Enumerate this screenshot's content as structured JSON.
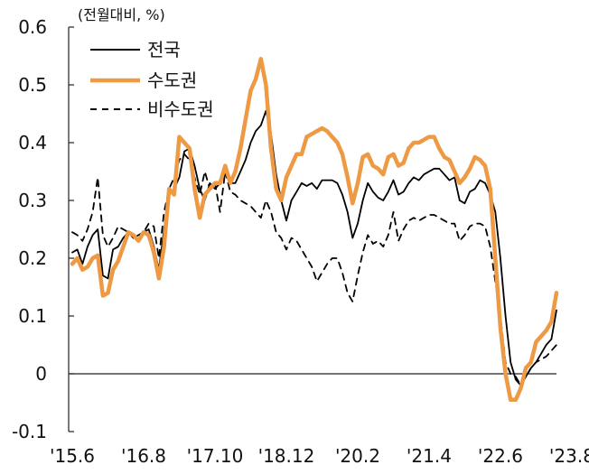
{
  "chart_data": {
    "type": "line",
    "title": "",
    "unit_label": "(전월대비, %)",
    "xlabel": "",
    "ylabel": "",
    "ylim": [
      -0.1,
      0.6
    ],
    "y_ticks": [
      -0.1,
      0,
      0.1,
      0.2,
      0.3,
      0.4,
      0.5,
      0.6
    ],
    "y_tick_labels": [
      "-0.1",
      "0",
      "0.1",
      "0.2",
      "0.3",
      "0.4",
      "0.5",
      "0.6"
    ],
    "x_start": "2015-06",
    "x_tick_labels": [
      "'15.6",
      "'16.8",
      "'17.10",
      "'18.12",
      "'20.2",
      "'21.4",
      "'22.6",
      "'23.8"
    ],
    "legend": {
      "position": "top-left"
    },
    "grid": false,
    "series": [
      {
        "name": "전국",
        "color": "#000000",
        "style": "solid",
        "values": [
          0.21,
          0.215,
          0.19,
          0.22,
          0.24,
          0.25,
          0.17,
          0.165,
          0.215,
          0.22,
          0.235,
          0.245,
          0.235,
          0.24,
          0.245,
          0.25,
          0.22,
          0.18,
          0.25,
          0.31,
          0.32,
          0.34,
          0.385,
          0.39,
          0.36,
          0.32,
          0.3,
          0.33,
          0.32,
          0.33,
          0.345,
          0.33,
          0.33,
          0.35,
          0.37,
          0.4,
          0.42,
          0.43,
          0.455,
          0.415,
          0.345,
          0.3,
          0.265,
          0.3,
          0.315,
          0.33,
          0.325,
          0.33,
          0.32,
          0.335,
          0.335,
          0.335,
          0.33,
          0.31,
          0.28,
          0.235,
          0.26,
          0.3,
          0.33,
          0.315,
          0.305,
          0.3,
          0.315,
          0.335,
          0.31,
          0.315,
          0.33,
          0.34,
          0.335,
          0.345,
          0.35,
          0.355,
          0.355,
          0.345,
          0.335,
          0.34,
          0.3,
          0.295,
          0.315,
          0.32,
          0.335,
          0.33,
          0.31,
          0.28,
          0.2,
          0.1,
          0.02,
          -0.01,
          -0.02,
          -0.005,
          0.01,
          0.02,
          0.035,
          0.05,
          0.06,
          0.11
        ]
      },
      {
        "name": "수도권",
        "color": "#ee9944",
        "style": "solid",
        "values": [
          0.19,
          0.2,
          0.18,
          0.185,
          0.2,
          0.205,
          0.135,
          0.14,
          0.18,
          0.195,
          0.22,
          0.245,
          0.24,
          0.23,
          0.245,
          0.24,
          0.21,
          0.165,
          0.22,
          0.32,
          0.31,
          0.41,
          0.4,
          0.39,
          0.32,
          0.27,
          0.31,
          0.32,
          0.33,
          0.33,
          0.36,
          0.33,
          0.35,
          0.39,
          0.44,
          0.49,
          0.51,
          0.545,
          0.5,
          0.39,
          0.32,
          0.3,
          0.34,
          0.36,
          0.38,
          0.38,
          0.41,
          0.415,
          0.42,
          0.425,
          0.42,
          0.41,
          0.4,
          0.38,
          0.34,
          0.295,
          0.33,
          0.375,
          0.38,
          0.36,
          0.355,
          0.345,
          0.375,
          0.38,
          0.36,
          0.365,
          0.39,
          0.4,
          0.4,
          0.405,
          0.41,
          0.41,
          0.39,
          0.375,
          0.37,
          0.35,
          0.33,
          0.34,
          0.355,
          0.375,
          0.37,
          0.36,
          0.32,
          0.2,
          0.08,
          0.0,
          -0.045,
          -0.045,
          -0.025,
          0.01,
          0.02,
          0.055,
          0.065,
          0.075,
          0.09,
          0.14
        ]
      },
      {
        "name": "비수도권",
        "color": "#000000",
        "style": "dashed",
        "values": [
          0.245,
          0.24,
          0.23,
          0.25,
          0.28,
          0.34,
          0.24,
          0.22,
          0.235,
          0.255,
          0.25,
          0.245,
          0.24,
          0.23,
          0.245,
          0.26,
          0.255,
          0.2,
          0.28,
          0.32,
          0.34,
          0.37,
          0.38,
          0.37,
          0.34,
          0.31,
          0.35,
          0.32,
          0.33,
          0.28,
          0.35,
          0.315,
          0.31,
          0.3,
          0.295,
          0.29,
          0.28,
          0.27,
          0.3,
          0.28,
          0.245,
          0.235,
          0.215,
          0.235,
          0.23,
          0.215,
          0.2,
          0.185,
          0.16,
          0.175,
          0.19,
          0.2,
          0.2,
          0.175,
          0.14,
          0.125,
          0.17,
          0.21,
          0.24,
          0.225,
          0.23,
          0.22,
          0.24,
          0.28,
          0.23,
          0.25,
          0.265,
          0.27,
          0.265,
          0.27,
          0.275,
          0.275,
          0.27,
          0.265,
          0.26,
          0.26,
          0.23,
          0.24,
          0.255,
          0.26,
          0.26,
          0.255,
          0.22,
          0.16,
          0.1,
          0.02,
          0.0,
          -0.005,
          -0.02,
          -0.005,
          0.01,
          0.02,
          0.025,
          0.03,
          0.04,
          0.05
        ]
      }
    ]
  }
}
